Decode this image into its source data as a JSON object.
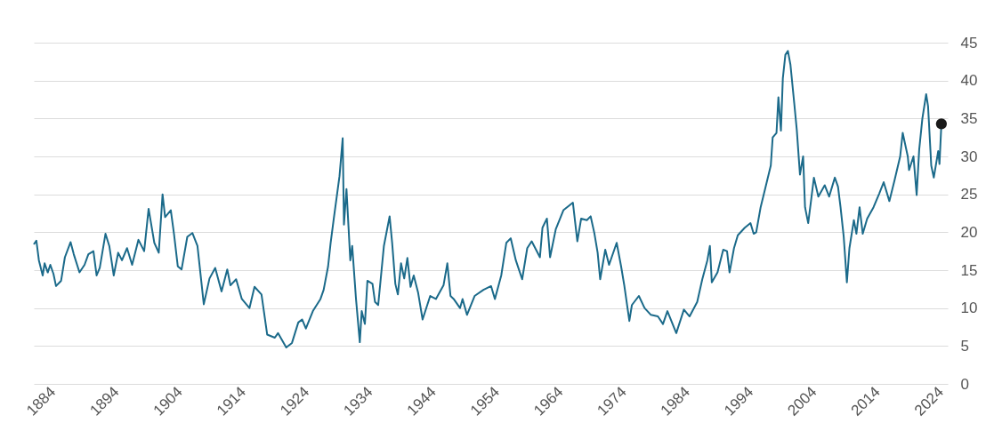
{
  "chart_data": {
    "type": "line",
    "grid": "y",
    "xlim": [
      1881,
      2025.1
    ],
    "xticks": [
      1884,
      1894,
      1904,
      1914,
      1924,
      1934,
      1944,
      1954,
      1964,
      1974,
      1984,
      1994,
      2004,
      2014,
      2024
    ],
    "ylim": [
      0,
      45
    ],
    "yticks": [
      0,
      5,
      10,
      15,
      20,
      25,
      30,
      35,
      40,
      45
    ],
    "line_style": "solid",
    "series": [
      {
        "color": "#1b6a8a",
        "x": [
          1881.0,
          1881.4,
          1881.8,
          1882.4,
          1882.7,
          1883.2,
          1883.6,
          1884.1,
          1884.5,
          1885.3,
          1885.9,
          1886.8,
          1887.3,
          1888.2,
          1889.0,
          1889.6,
          1890.4,
          1890.9,
          1891.4,
          1892.3,
          1892.9,
          1893.6,
          1894.3,
          1894.9,
          1895.7,
          1896.5,
          1897.5,
          1898.4,
          1899.1,
          1900.0,
          1900.7,
          1901.3,
          1901.7,
          1902.6,
          1903.1,
          1903.7,
          1904.3,
          1905.2,
          1906.0,
          1906.8,
          1907.8,
          1908.7,
          1909.6,
          1910.6,
          1911.5,
          1912.0,
          1912.9,
          1913.8,
          1915.0,
          1915.8,
          1916.9,
          1917.8,
          1919.0,
          1919.5,
          1920.8,
          1921.7,
          1922.7,
          1923.3,
          1923.9,
          1925.0,
          1926.2,
          1926.7,
          1927.4,
          1927.8,
          1928.3,
          1929.2,
          1929.7,
          1929.9,
          1930.3,
          1930.9,
          1931.2,
          1931.8,
          1932.4,
          1932.7,
          1933.2,
          1933.6,
          1934.4,
          1934.8,
          1935.3,
          1936.2,
          1937.1,
          1937.5,
          1938.0,
          1938.4,
          1938.9,
          1939.4,
          1939.9,
          1940.4,
          1940.9,
          1941.6,
          1942.3,
          1943.5,
          1944.4,
          1945.6,
          1946.2,
          1946.7,
          1947.2,
          1948.2,
          1948.6,
          1949.3,
          1950.5,
          1951.9,
          1953.1,
          1953.7,
          1954.7,
          1955.5,
          1956.2,
          1957.0,
          1958.0,
          1958.8,
          1959.5,
          1960.8,
          1961.2,
          1961.9,
          1962.4,
          1963.3,
          1964.5,
          1966.0,
          1966.7,
          1967.3,
          1968.2,
          1968.8,
          1969.4,
          1969.9,
          1970.3,
          1971.1,
          1971.7,
          1972.9,
          1973.6,
          1974.1,
          1974.9,
          1975.3,
          1976.4,
          1977.3,
          1978.3,
          1979.4,
          1980.2,
          1980.9,
          1982.3,
          1983.5,
          1984.4,
          1985.6,
          1986.4,
          1987.2,
          1987.6,
          1987.9,
          1988.8,
          1989.7,
          1990.3,
          1990.7,
          1991.4,
          1992.0,
          1993.1,
          1994.0,
          1994.5,
          1994.9,
          1995.6,
          1996.3,
          1997.2,
          1997.5,
          1998.1,
          1998.4,
          1998.8,
          1999.1,
          1999.5,
          1999.9,
          2000.3,
          2000.9,
          2001.3,
          2001.8,
          2002.3,
          2002.6,
          2003.1,
          2003.6,
          2004.0,
          2004.7,
          2005.7,
          2006.4,
          2007.3,
          2007.8,
          2008.2,
          2008.7,
          2009.2,
          2009.6,
          2010.3,
          2010.7,
          2011.2,
          2011.7,
          2012.4,
          2013.4,
          2014.3,
          2015.0,
          2015.9,
          2016.7,
          2017.6,
          2018.0,
          2018.8,
          2019.0,
          2019.7,
          2020.2,
          2020.6,
          2021.1,
          2021.7,
          2022.0,
          2022.5,
          2022.9,
          2023.6,
          2023.8,
          2024.1
        ],
        "values": [
          18.4,
          18.9,
          16.3,
          14.3,
          15.9,
          14.7,
          15.7,
          14.5,
          12.9,
          13.6,
          16.7,
          18.7,
          17.1,
          14.7,
          15.7,
          17.1,
          17.5,
          14.3,
          15.3,
          19.8,
          18.2,
          14.3,
          17.3,
          16.3,
          17.9,
          15.7,
          19.0,
          17.5,
          23.1,
          18.6,
          17.3,
          25.0,
          22.0,
          22.9,
          19.8,
          15.5,
          15.1,
          19.4,
          19.9,
          18.2,
          10.5,
          13.9,
          15.3,
          12.2,
          15.1,
          13.0,
          13.8,
          11.2,
          10.0,
          12.8,
          11.8,
          6.5,
          6.1,
          6.7,
          4.8,
          5.4,
          8.1,
          8.5,
          7.3,
          9.6,
          11.2,
          12.4,
          15.5,
          18.6,
          21.8,
          27.4,
          32.4,
          21.0,
          25.7,
          16.3,
          18.2,
          11.2,
          5.5,
          9.6,
          7.9,
          13.6,
          13.2,
          10.8,
          10.4,
          18.2,
          22.1,
          18.6,
          13.2,
          11.8,
          15.9,
          13.9,
          16.6,
          12.8,
          14.3,
          12.0,
          8.5,
          11.6,
          11.2,
          13.0,
          15.9,
          11.6,
          11.2,
          10.0,
          11.2,
          9.1,
          11.6,
          12.4,
          12.9,
          11.2,
          14.3,
          18.6,
          19.2,
          16.3,
          13.8,
          17.9,
          18.8,
          16.7,
          20.6,
          21.8,
          16.7,
          20.4,
          22.9,
          23.9,
          18.8,
          21.8,
          21.6,
          22.1,
          19.8,
          17.3,
          13.8,
          17.7,
          15.7,
          18.6,
          15.5,
          13.0,
          8.3,
          10.4,
          11.6,
          10.0,
          9.1,
          8.9,
          7.9,
          9.6,
          6.7,
          9.8,
          8.9,
          10.8,
          13.8,
          16.3,
          18.2,
          13.4,
          14.7,
          17.7,
          17.5,
          14.7,
          17.9,
          19.6,
          20.6,
          21.2,
          19.8,
          20.0,
          23.3,
          25.7,
          28.8,
          32.5,
          33.1,
          37.8,
          33.4,
          40.3,
          43.4,
          43.9,
          42.1,
          37.0,
          33.5,
          27.6,
          30.0,
          23.3,
          21.2,
          24.5,
          27.2,
          24.7,
          26.2,
          24.7,
          27.2,
          26.0,
          23.3,
          19.4,
          13.4,
          17.9,
          21.6,
          19.8,
          23.3,
          19.8,
          21.8,
          23.3,
          25.1,
          26.6,
          24.1,
          26.8,
          30.0,
          33.1,
          30.0,
          28.2,
          30.0,
          24.9,
          30.9,
          35.0,
          38.2,
          36.6,
          28.8,
          27.2,
          30.7,
          29.0,
          34.3
        ]
      },
      {
        "type": "scatter",
        "marker": "circle",
        "color": "#1a1a1a",
        "x": [
          2024.1
        ],
        "values": [
          34.3
        ]
      }
    ]
  }
}
